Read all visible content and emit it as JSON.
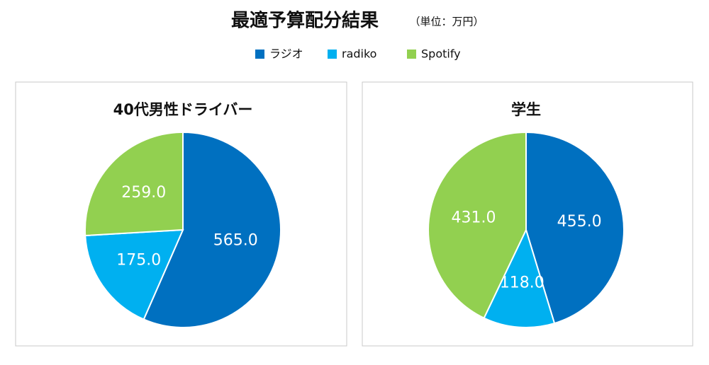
{
  "title": "最適予算配分結果",
  "unit": "（単位：万円）",
  "chart_data": [
    {
      "type": "pie",
      "title": "40代男性ドライバー",
      "categories": [
        "ラジオ",
        "radiko",
        "Spotify"
      ],
      "values": [
        565,
        175,
        259
      ],
      "value_labels": [
        "565.0",
        "175.0",
        "259.0"
      ],
      "colors": [
        "#0070c0",
        "#00b0f0",
        "#92d050"
      ]
    },
    {
      "type": "pie",
      "title": "学生",
      "categories": [
        "ラジオ",
        "radiko",
        "Spotify"
      ],
      "values": [
        455,
        118,
        431
      ],
      "value_labels": [
        "455.0",
        "118.0",
        "431.0"
      ],
      "colors": [
        "#0070c0",
        "#00b0f0",
        "#92d050"
      ]
    }
  ]
}
